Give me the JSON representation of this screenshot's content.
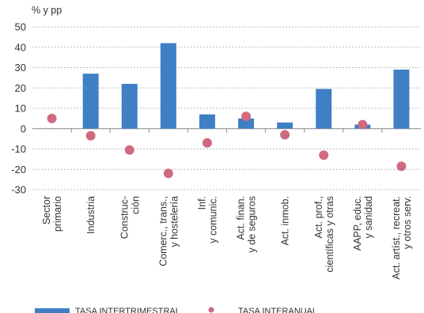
{
  "chart_data": {
    "type": "bar",
    "unit_label": "% y pp",
    "ylim": [
      -30,
      50
    ],
    "yticks": [
      -30,
      -20,
      -10,
      0,
      10,
      20,
      30,
      40,
      50
    ],
    "categories": [
      [
        "Sector",
        "primario"
      ],
      [
        "Industria"
      ],
      [
        "Construc-",
        "ción"
      ],
      [
        "Comerc., trans.,",
        "y hostelería"
      ],
      [
        "Inf.",
        "y comunic."
      ],
      [
        "Act. finan.",
        "y de seguros"
      ],
      [
        "Act. inmob."
      ],
      [
        "Act. prof.,",
        "científicas y otras"
      ],
      [
        "AAPP, educ.",
        "y sanidad"
      ],
      [
        "Act. artíst., recreat.",
        "y otros serv."
      ]
    ],
    "series": [
      {
        "name": "TASA INTERTRIMESTRAL",
        "type": "bar",
        "color": "#3f7fc4",
        "values": [
          0,
          27,
          22,
          42,
          7,
          5,
          3,
          19.5,
          2,
          29
        ]
      },
      {
        "name": "TASA INTERANUAL",
        "type": "scatter",
        "color": "#d06a80",
        "values": [
          5,
          -3.5,
          -10.5,
          -22,
          -7,
          6,
          -3,
          -13,
          2,
          -18.5
        ]
      }
    ]
  }
}
